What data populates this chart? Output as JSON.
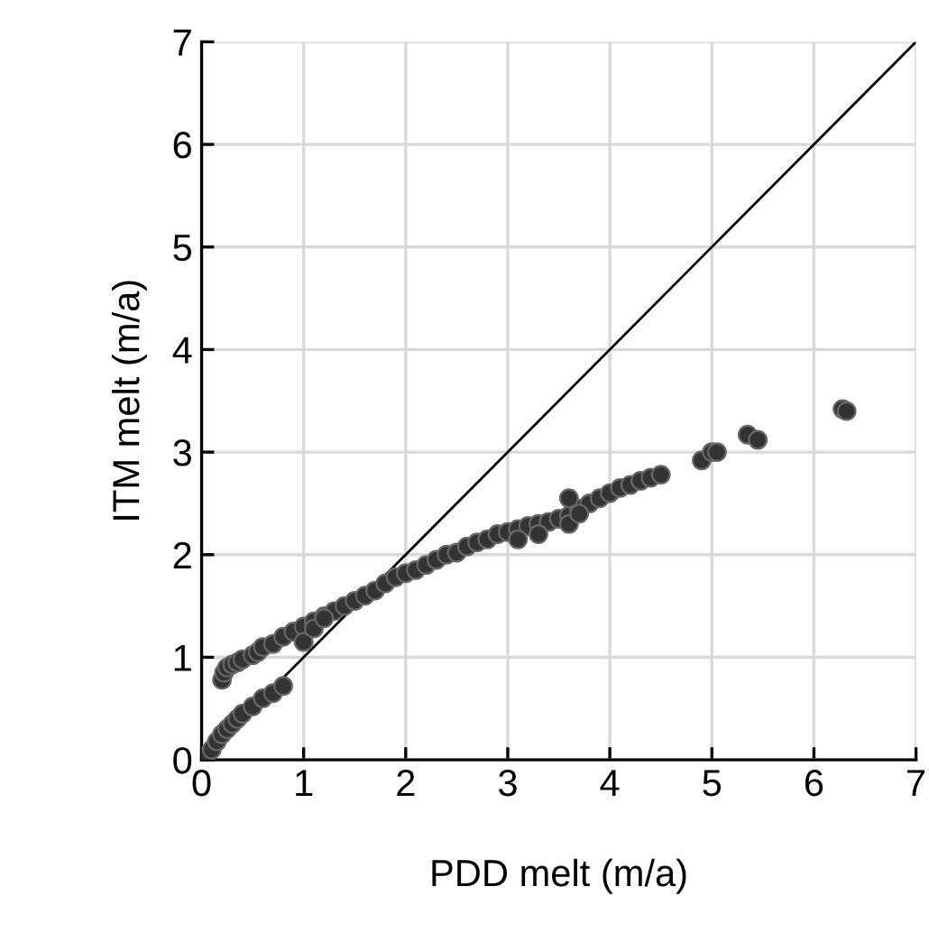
{
  "chart_data": {
    "type": "scatter",
    "xlabel": "PDD melt (m/a)",
    "ylabel": "ITM melt (m/a)",
    "xlim": [
      0,
      7
    ],
    "ylim": [
      0,
      7
    ],
    "xticks": [
      0,
      1,
      2,
      3,
      4,
      5,
      6,
      7
    ],
    "yticks": [
      0,
      1,
      2,
      3,
      4,
      5,
      6,
      7
    ],
    "grid": true,
    "series": [
      {
        "color": "#333333",
        "marker": "circle",
        "x": [
          0.2,
          0.22,
          0.25,
          0.3,
          0.35,
          0.4,
          0.5,
          0.55,
          0.6,
          0.7,
          0.8,
          0.9,
          1.0,
          1.1,
          1.2,
          1.3,
          1.4,
          1.5,
          1.6,
          1.7,
          1.8,
          1.9,
          2.0,
          2.1,
          2.2,
          2.3,
          2.4,
          2.5,
          2.6,
          2.7,
          2.8,
          2.9,
          3.0,
          3.1,
          3.2,
          3.3,
          3.4,
          3.5,
          3.6,
          3.7,
          3.8,
          3.9,
          4.0,
          4.1,
          4.2,
          4.3,
          4.4,
          4.5,
          4.9,
          5.0,
          5.05,
          5.35,
          5.45,
          6.28,
          6.32,
          3.1,
          3.3,
          3.6,
          3.7,
          3.6,
          0.02,
          0.05,
          0.1,
          0.15,
          0.2,
          0.25,
          0.3,
          0.35,
          0.4,
          0.5,
          0.6,
          0.7,
          0.8,
          1.0,
          1.1,
          1.2
        ],
        "values": [
          0.78,
          0.85,
          0.9,
          0.93,
          0.95,
          0.98,
          1.02,
          1.05,
          1.1,
          1.13,
          1.2,
          1.25,
          1.3,
          1.35,
          1.4,
          1.45,
          1.5,
          1.55,
          1.6,
          1.65,
          1.72,
          1.78,
          1.82,
          1.85,
          1.9,
          1.95,
          2.0,
          2.02,
          2.08,
          2.12,
          2.15,
          2.2,
          2.22,
          2.25,
          2.28,
          2.3,
          2.32,
          2.35,
          2.38,
          2.45,
          2.5,
          2.55,
          2.6,
          2.65,
          2.68,
          2.72,
          2.75,
          2.78,
          2.92,
          3.0,
          3.0,
          3.17,
          3.12,
          3.42,
          3.4,
          2.15,
          2.2,
          2.3,
          2.4,
          2.55,
          0.02,
          0.05,
          0.1,
          0.18,
          0.25,
          0.3,
          0.35,
          0.4,
          0.45,
          0.52,
          0.6,
          0.65,
          0.72,
          1.15,
          1.28,
          1.38
        ]
      },
      {
        "type": "line",
        "color": "#000000",
        "x": [
          0,
          7
        ],
        "values": [
          0,
          7
        ]
      }
    ]
  }
}
